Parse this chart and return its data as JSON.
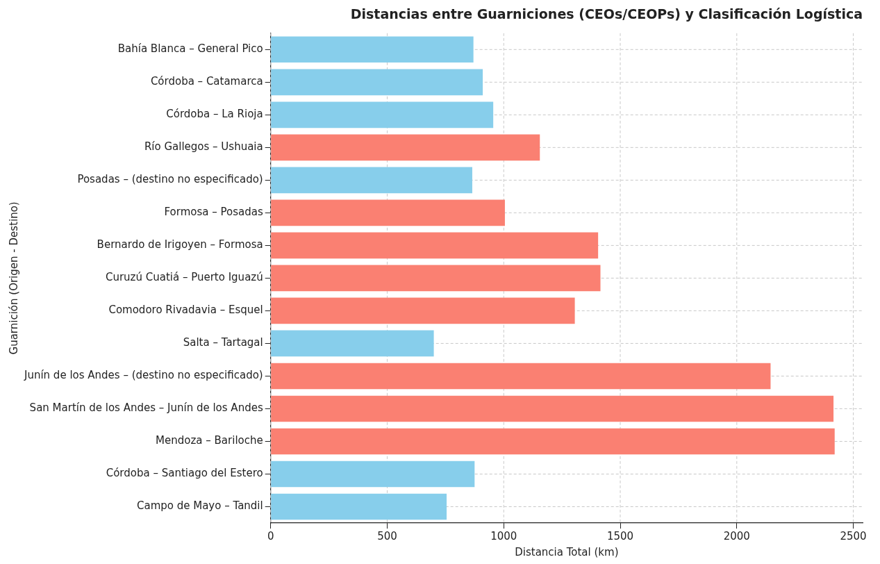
{
  "chart_data": {
    "type": "bar",
    "orientation": "horizontal",
    "title": "Distancias entre Guarniciones (CEOs/CEOPs) y Clasificación Logística",
    "xlabel": "Distancia Total (km)",
    "ylabel": "Guarnición (Origen - Destino)",
    "categories": [
      "Bahía Blanca – General Pico",
      "Córdoba – Catamarca",
      "Córdoba – La Rioja",
      "Río Gallegos – Ushuaia",
      "Posadas – (destino no especificado)",
      "Formosa – Posadas",
      "Bernardo de Irigoyen – Formosa",
      "Curuzú Cuatiá – Puerto Iguazú",
      "Comodoro Rivadavia – Esquel",
      "Salta – Tartagal",
      "Junín de los Andes – (destino no especificado)",
      "San Martín de los Andes – Junín de los Andes",
      "Mendoza – Bariloche",
      "Córdoba – Santiago del Estero",
      "Campo de Mayo – Tandil"
    ],
    "values": [
      870,
      910,
      955,
      1155,
      865,
      1005,
      1405,
      1415,
      1305,
      700,
      2145,
      2415,
      2420,
      875,
      755
    ],
    "colors": [
      "#87ceeb",
      "#87ceeb",
      "#87ceeb",
      "#fa8072",
      "#87ceeb",
      "#fa8072",
      "#fa8072",
      "#fa8072",
      "#fa8072",
      "#87ceeb",
      "#fa8072",
      "#fa8072",
      "#fa8072",
      "#87ceeb",
      "#87ceeb"
    ],
    "xlim": [
      0,
      2540
    ],
    "xticks": [
      0,
      500,
      1000,
      1500,
      2000,
      2500
    ],
    "grid": true,
    "legend": false
  }
}
